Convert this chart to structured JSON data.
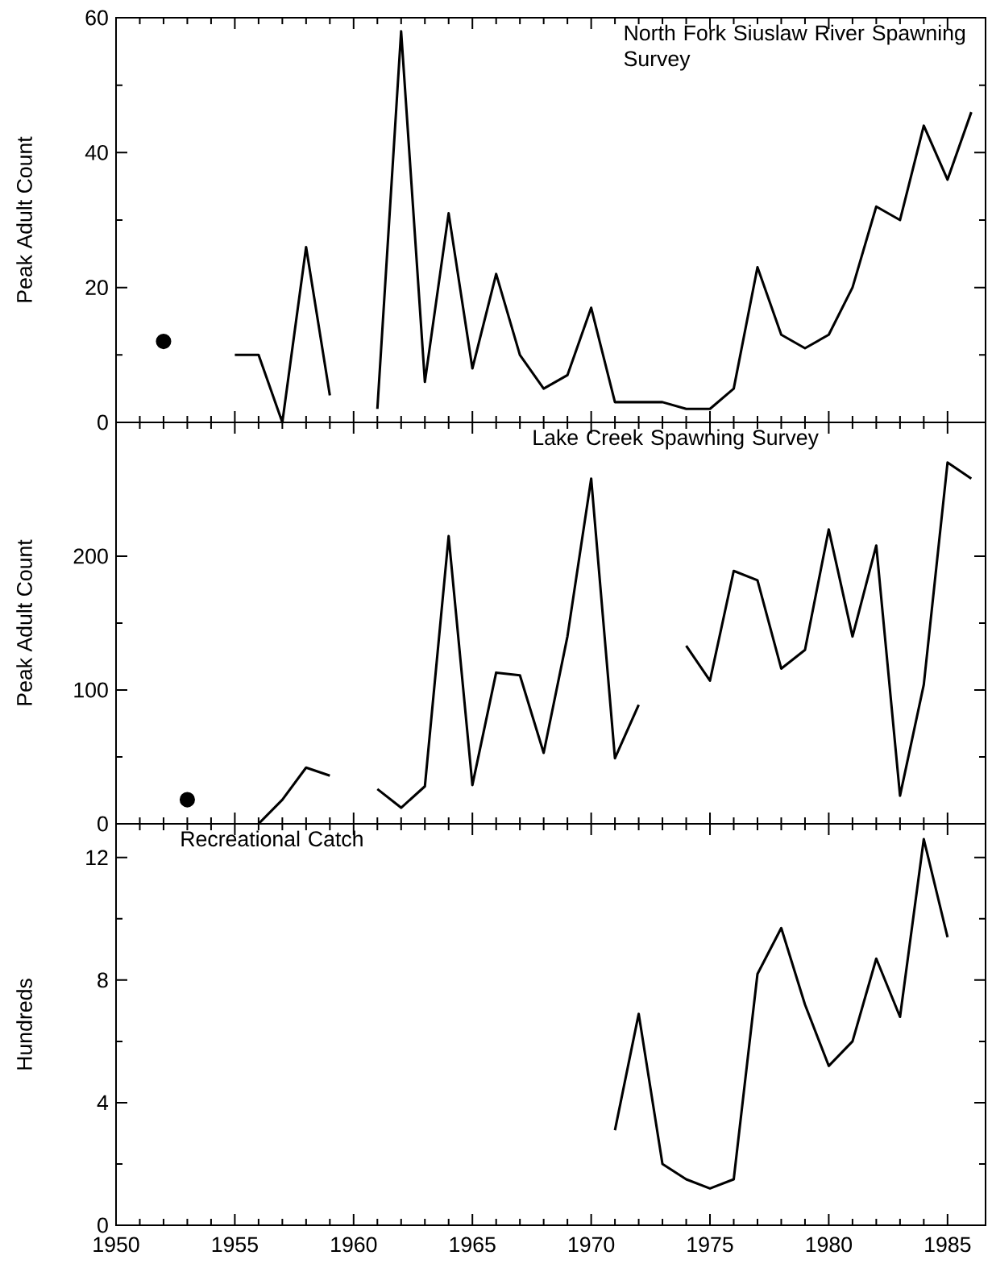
{
  "chart_data": [
    {
      "type": "line",
      "title": "North Fork Siuslaw River Spawning Survey",
      "ylabel": "Peak Adult Count",
      "xlim": [
        1950,
        1986.6
      ],
      "xticks": [
        1950,
        1955,
        1960,
        1965,
        1970,
        1975,
        1980,
        1985
      ],
      "ylim": [
        0,
        60
      ],
      "yticks": [
        0,
        20,
        40,
        60
      ],
      "tick_labels": "y",
      "series": [
        {
          "color": "#000000",
          "x": [
            1955,
            1956,
            1957,
            1958,
            1959,
            1960,
            1961,
            1962,
            1963,
            1964,
            1965,
            1966,
            1967,
            1968,
            1969,
            1970,
            1971,
            1972,
            1973,
            1974,
            1975,
            1976,
            1977,
            1978,
            1979,
            1980,
            1981,
            1982,
            1983,
            1984,
            1985,
            1986
          ],
          "values": [
            10,
            10,
            0,
            26,
            4,
            null,
            2,
            58,
            6,
            31,
            8,
            22,
            10,
            5,
            7,
            17,
            3,
            3,
            3,
            2,
            2,
            5,
            23,
            13,
            11,
            13,
            20,
            32,
            30,
            44,
            36,
            46
          ]
        },
        {
          "type": "scatter",
          "marker": "circle",
          "color": "#000000",
          "x": [
            1952
          ],
          "values": [
            12
          ]
        }
      ]
    },
    {
      "type": "line",
      "title": "Lake Creek Spawning Survey",
      "ylabel": "Peak Adult Count",
      "xlim": [
        1950,
        1986.6
      ],
      "xticks": [
        1950,
        1955,
        1960,
        1965,
        1970,
        1975,
        1980,
        1985
      ],
      "ylim": [
        0,
        300
      ],
      "yticks": [
        0,
        100,
        200
      ],
      "tick_labels": "y",
      "series": [
        {
          "color": "#000000",
          "x": [
            1956,
            1957,
            1958,
            1959,
            1960,
            1961,
            1962,
            1963,
            1964,
            1965,
            1966,
            1967,
            1968,
            1969,
            1970,
            1971,
            1972,
            1973,
            1974,
            1975,
            1976,
            1977,
            1978,
            1979,
            1980,
            1981,
            1982,
            1983,
            1984,
            1985,
            1986
          ],
          "values": [
            0,
            18,
            42,
            36,
            null,
            26,
            12,
            28,
            215,
            29,
            113,
            111,
            53,
            140,
            258,
            49,
            89,
            null,
            133,
            107,
            189,
            182,
            116,
            130,
            220,
            140,
            208,
            21,
            104,
            270,
            258
          ]
        },
        {
          "type": "scatter",
          "marker": "circle",
          "color": "#000000",
          "x": [
            1953
          ],
          "values": [
            18
          ]
        }
      ]
    },
    {
      "type": "line",
      "title": "Recreational Catch",
      "ylabel": "Hundreds",
      "xlim": [
        1950,
        1986.6
      ],
      "xticks": [
        1950,
        1955,
        1960,
        1965,
        1970,
        1975,
        1980,
        1985
      ],
      "ylim": [
        0,
        13.1
      ],
      "yticks": [
        0,
        4,
        8,
        12
      ],
      "series": [
        {
          "color": "#000000",
          "x": [
            1971,
            1972,
            1973,
            1974,
            1975,
            1976,
            1977,
            1978,
            1979,
            1980,
            1981,
            1982,
            1983,
            1984,
            1985
          ],
          "values": [
            3.1,
            6.9,
            2.0,
            1.5,
            1.2,
            1.5,
            8.2,
            9.7,
            7.2,
            5.2,
            6.0,
            8.7,
            6.8,
            12.6,
            9.4
          ]
        }
      ]
    }
  ]
}
